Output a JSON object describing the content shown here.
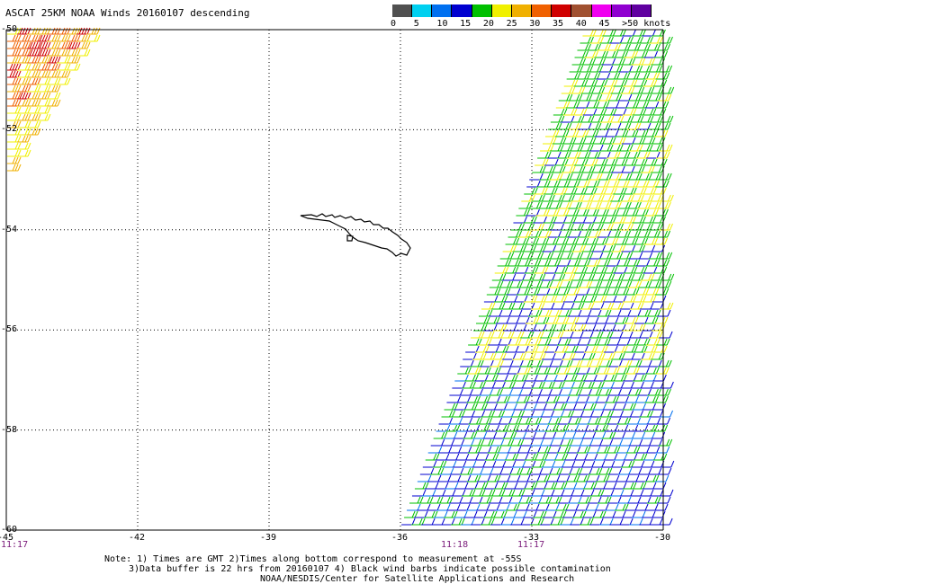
{
  "title": "ASCAT 25KM NOAA Winds 20160107 descending",
  "colors": {
    "background": "#ffffff",
    "grid": "#000000",
    "coast": "#000000",
    "time_label": "#7a1a7a"
  },
  "legend": {
    "swatches": [
      "#505050",
      "#00d0f0",
      "#0070f0",
      "#0000d0",
      "#00c000",
      "#f0f000",
      "#f0b000",
      "#f06000",
      "#d00000",
      "#a05030",
      "#f000f0",
      "#9000d0",
      "#6000a0"
    ],
    "labels": [
      "0",
      "5",
      "10",
      "15",
      "20",
      "25",
      "30",
      "35",
      "40",
      "45",
      ">50 knots"
    ]
  },
  "lon_ticks": [
    "-45",
    "-42",
    "-39",
    "-36",
    "-33",
    "-30"
  ],
  "lat_ticks": [
    "-50",
    "-52",
    "-54",
    "-56",
    "-58",
    "-60"
  ],
  "time_labels": [
    "11:17",
    "11:18",
    "11:17"
  ],
  "notes": [
    "Note: 1) Times are GMT 2)Times along bottom correspond to measurement at -55S",
    "3)Data buffer is 22 hrs from 20160107 4) Black wind barbs indicate possible contamination",
    "NOAA/NESDIS/Center for Satellite Applications and Research"
  ],
  "map_data": {
    "projection": "lat-lon",
    "lon_range": [
      -45,
      -30
    ],
    "lat_range": [
      -60,
      -50
    ],
    "swaths": [
      {
        "name": "west",
        "dominant_speed_knots": [
          20,
          35
        ]
      },
      {
        "name": "east",
        "dominant_speed_knots": [
          10,
          25
        ]
      }
    ],
    "landmass": "South Georgia"
  }
}
